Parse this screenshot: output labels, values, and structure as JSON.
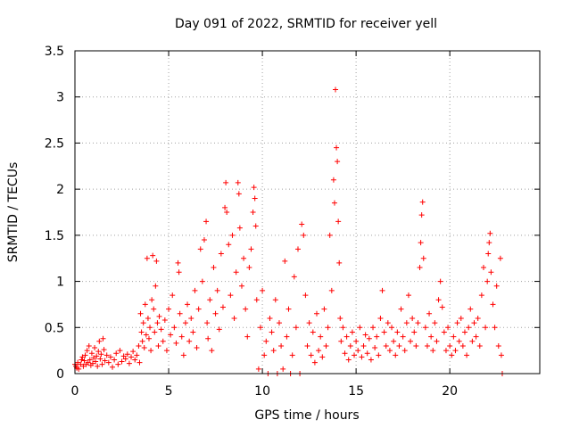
{
  "chart_data": {
    "type": "scatter",
    "title": "Day 091 of 2022, SRMTID for receiver yell",
    "xlabel": "GPS time / hours",
    "ylabel": "SRMTID / TECUs",
    "xlim": [
      0,
      24.8
    ],
    "ylim": [
      0,
      3.5
    ],
    "x_ticks": [
      0,
      5,
      10,
      15,
      20
    ],
    "x_tick_labels": [
      "0",
      "5",
      "10",
      "15",
      "20"
    ],
    "y_ticks": [
      0,
      0.5,
      1,
      1.5,
      2,
      2.5,
      3,
      3.5
    ],
    "y_tick_labels": [
      "0",
      "0.5",
      "1",
      "1.5",
      "2",
      "2.5",
      "3",
      "3.5"
    ],
    "grid": true,
    "marker": "+",
    "series_color": "#ff0000",
    "series": [
      {
        "name": "SRMTID",
        "points": [
          [
            0.0,
            0.1
          ],
          [
            0.05,
            0.08
          ],
          [
            0.1,
            0.06
          ],
          [
            0.15,
            0.12
          ],
          [
            0.2,
            0.05
          ],
          [
            0.3,
            0.1
          ],
          [
            0.35,
            0.15
          ],
          [
            0.4,
            0.18
          ],
          [
            0.45,
            0.08
          ],
          [
            0.5,
            0.14
          ],
          [
            0.55,
            0.2
          ],
          [
            0.6,
            0.1
          ],
          [
            0.65,
            0.25
          ],
          [
            0.7,
            0.12
          ],
          [
            0.75,
            0.3
          ],
          [
            0.8,
            0.15
          ],
          [
            0.85,
            0.09
          ],
          [
            0.9,
            0.22
          ],
          [
            0.95,
            0.11
          ],
          [
            1.0,
            0.17
          ],
          [
            1.05,
            0.28
          ],
          [
            1.1,
            0.13
          ],
          [
            1.15,
            0.19
          ],
          [
            1.2,
            0.08
          ],
          [
            1.25,
            0.24
          ],
          [
            1.3,
            0.35
          ],
          [
            1.35,
            0.16
          ],
          [
            1.4,
            0.21
          ],
          [
            1.45,
            0.1
          ],
          [
            1.5,
            0.38
          ],
          [
            1.55,
            0.26
          ],
          [
            1.6,
            0.14
          ],
          [
            1.7,
            0.2
          ],
          [
            1.8,
            0.12
          ],
          [
            1.9,
            0.18
          ],
          [
            2.0,
            0.07
          ],
          [
            2.1,
            0.15
          ],
          [
            2.2,
            0.22
          ],
          [
            2.3,
            0.1
          ],
          [
            2.4,
            0.25
          ],
          [
            2.5,
            0.13
          ],
          [
            2.6,
            0.19
          ],
          [
            2.7,
            0.16
          ],
          [
            2.8,
            0.21
          ],
          [
            2.9,
            0.11
          ],
          [
            3.0,
            0.18
          ],
          [
            3.1,
            0.24
          ],
          [
            3.2,
            0.15
          ],
          [
            3.3,
            0.2
          ],
          [
            3.4,
            0.3
          ],
          [
            3.45,
            0.12
          ],
          [
            3.5,
            0.65
          ],
          [
            3.55,
            0.45
          ],
          [
            3.6,
            0.35
          ],
          [
            3.65,
            0.55
          ],
          [
            3.7,
            0.28
          ],
          [
            3.75,
            0.75
          ],
          [
            3.8,
            0.42
          ],
          [
            3.85,
            1.25
          ],
          [
            3.9,
            0.6
          ],
          [
            3.95,
            0.38
          ],
          [
            4.0,
            0.5
          ],
          [
            4.05,
            0.25
          ],
          [
            4.1,
            0.8
          ],
          [
            4.15,
            1.28
          ],
          [
            4.2,
            0.7
          ],
          [
            4.25,
            0.45
          ],
          [
            4.3,
            0.95
          ],
          [
            4.35,
            1.22
          ],
          [
            4.4,
            0.55
          ],
          [
            4.45,
            0.3
          ],
          [
            4.5,
            0.62
          ],
          [
            4.6,
            0.48
          ],
          [
            4.7,
            0.35
          ],
          [
            4.8,
            0.58
          ],
          [
            4.9,
            0.25
          ],
          [
            5.0,
            0.7
          ],
          [
            5.1,
            0.42
          ],
          [
            5.2,
            0.85
          ],
          [
            5.3,
            0.5
          ],
          [
            5.4,
            0.33
          ],
          [
            5.5,
            1.2
          ],
          [
            5.55,
            1.1
          ],
          [
            5.6,
            0.65
          ],
          [
            5.7,
            0.4
          ],
          [
            5.8,
            0.2
          ],
          [
            5.9,
            0.55
          ],
          [
            6.0,
            0.75
          ],
          [
            6.1,
            0.35
          ],
          [
            6.2,
            0.6
          ],
          [
            6.3,
            0.45
          ],
          [
            6.4,
            0.9
          ],
          [
            6.5,
            0.28
          ],
          [
            6.6,
            0.7
          ],
          [
            6.7,
            1.35
          ],
          [
            6.8,
            1.0
          ],
          [
            6.9,
            1.45
          ],
          [
            7.0,
            1.65
          ],
          [
            7.05,
            0.55
          ],
          [
            7.1,
            0.38
          ],
          [
            7.2,
            0.8
          ],
          [
            7.3,
            0.25
          ],
          [
            7.4,
            1.15
          ],
          [
            7.5,
            0.65
          ],
          [
            7.6,
            0.9
          ],
          [
            7.7,
            0.48
          ],
          [
            7.8,
            1.3
          ],
          [
            7.9,
            0.72
          ],
          [
            8.0,
            1.8
          ],
          [
            8.05,
            2.07
          ],
          [
            8.1,
            1.75
          ],
          [
            8.2,
            1.4
          ],
          [
            8.3,
            0.85
          ],
          [
            8.4,
            1.5
          ],
          [
            8.5,
            0.6
          ],
          [
            8.6,
            1.1
          ],
          [
            8.7,
            2.07
          ],
          [
            8.75,
            1.95
          ],
          [
            8.8,
            1.58
          ],
          [
            8.9,
            0.95
          ],
          [
            9.0,
            1.25
          ],
          [
            9.1,
            0.7
          ],
          [
            9.2,
            0.4
          ],
          [
            9.3,
            1.15
          ],
          [
            9.4,
            1.35
          ],
          [
            9.5,
            1.75
          ],
          [
            9.55,
            2.02
          ],
          [
            9.6,
            1.9
          ],
          [
            9.65,
            1.6
          ],
          [
            9.7,
            0.8
          ],
          [
            9.8,
            0.05
          ],
          [
            9.9,
            0.5
          ],
          [
            10.0,
            0.9
          ],
          [
            10.1,
            0.2
          ],
          [
            10.2,
            0.35
          ],
          [
            10.3,
            0.0
          ],
          [
            10.4,
            0.6
          ],
          [
            10.5,
            0.45
          ],
          [
            10.6,
            0.25
          ],
          [
            10.7,
            0.8
          ],
          [
            10.8,
            0.0
          ],
          [
            10.9,
            0.55
          ],
          [
            11.0,
            0.3
          ],
          [
            11.1,
            0.05
          ],
          [
            11.2,
            1.22
          ],
          [
            11.3,
            0.4
          ],
          [
            11.4,
            0.7
          ],
          [
            11.5,
            0.0
          ],
          [
            11.6,
            0.2
          ],
          [
            11.7,
            1.05
          ],
          [
            11.8,
            0.5
          ],
          [
            11.9,
            1.35
          ],
          [
            12.0,
            0.0
          ],
          [
            12.1,
            1.62
          ],
          [
            12.2,
            1.5
          ],
          [
            12.3,
            0.85
          ],
          [
            12.4,
            0.3
          ],
          [
            12.5,
            0.55
          ],
          [
            12.6,
            0.2
          ],
          [
            12.7,
            0.45
          ],
          [
            12.8,
            0.12
          ],
          [
            12.9,
            0.65
          ],
          [
            13.0,
            0.25
          ],
          [
            13.1,
            0.4
          ],
          [
            13.2,
            0.18
          ],
          [
            13.3,
            0.7
          ],
          [
            13.4,
            0.3
          ],
          [
            13.5,
            0.5
          ],
          [
            13.6,
            1.5
          ],
          [
            13.7,
            0.9
          ],
          [
            13.8,
            2.1
          ],
          [
            13.85,
            1.85
          ],
          [
            13.9,
            3.08
          ],
          [
            13.95,
            2.45
          ],
          [
            14.0,
            2.3
          ],
          [
            14.05,
            1.65
          ],
          [
            14.1,
            1.2
          ],
          [
            14.15,
            0.6
          ],
          [
            14.2,
            0.35
          ],
          [
            14.3,
            0.5
          ],
          [
            14.4,
            0.22
          ],
          [
            14.5,
            0.4
          ],
          [
            14.6,
            0.15
          ],
          [
            14.7,
            0.3
          ],
          [
            14.8,
            0.45
          ],
          [
            14.9,
            0.2
          ],
          [
            15.0,
            0.35
          ],
          [
            15.1,
            0.25
          ],
          [
            15.2,
            0.5
          ],
          [
            15.3,
            0.18
          ],
          [
            15.4,
            0.3
          ],
          [
            15.5,
            0.42
          ],
          [
            15.6,
            0.22
          ],
          [
            15.7,
            0.38
          ],
          [
            15.8,
            0.15
          ],
          [
            15.9,
            0.5
          ],
          [
            16.0,
            0.28
          ],
          [
            16.1,
            0.4
          ],
          [
            16.2,
            0.2
          ],
          [
            16.3,
            0.6
          ],
          [
            16.4,
            0.9
          ],
          [
            16.5,
            0.45
          ],
          [
            16.6,
            0.3
          ],
          [
            16.7,
            0.55
          ],
          [
            16.8,
            0.25
          ],
          [
            16.9,
            0.5
          ],
          [
            17.0,
            0.35
          ],
          [
            17.1,
            0.2
          ],
          [
            17.2,
            0.45
          ],
          [
            17.3,
            0.3
          ],
          [
            17.4,
            0.7
          ],
          [
            17.5,
            0.4
          ],
          [
            17.6,
            0.25
          ],
          [
            17.7,
            0.55
          ],
          [
            17.8,
            0.85
          ],
          [
            17.9,
            0.35
          ],
          [
            18.0,
            0.6
          ],
          [
            18.1,
            0.45
          ],
          [
            18.2,
            0.3
          ],
          [
            18.3,
            0.55
          ],
          [
            18.4,
            1.15
          ],
          [
            18.45,
            1.42
          ],
          [
            18.5,
            1.72
          ],
          [
            18.55,
            1.86
          ],
          [
            18.6,
            1.25
          ],
          [
            18.7,
            0.5
          ],
          [
            18.8,
            0.3
          ],
          [
            18.9,
            0.65
          ],
          [
            19.0,
            0.4
          ],
          [
            19.1,
            0.25
          ],
          [
            19.2,
            0.55
          ],
          [
            19.3,
            0.35
          ],
          [
            19.4,
            0.8
          ],
          [
            19.5,
            1.0
          ],
          [
            19.6,
            0.72
          ],
          [
            19.7,
            0.45
          ],
          [
            19.8,
            0.25
          ],
          [
            19.9,
            0.5
          ],
          [
            20.0,
            0.3
          ],
          [
            20.1,
            0.2
          ],
          [
            20.2,
            0.4
          ],
          [
            20.3,
            0.25
          ],
          [
            20.4,
            0.55
          ],
          [
            20.5,
            0.35
          ],
          [
            20.6,
            0.6
          ],
          [
            20.7,
            0.3
          ],
          [
            20.8,
            0.45
          ],
          [
            20.9,
            0.2
          ],
          [
            21.0,
            0.5
          ],
          [
            21.1,
            0.7
          ],
          [
            21.2,
            0.35
          ],
          [
            21.3,
            0.55
          ],
          [
            21.4,
            0.4
          ],
          [
            21.5,
            0.6
          ],
          [
            21.6,
            0.3
          ],
          [
            21.7,
            0.85
          ],
          [
            21.8,
            1.15
          ],
          [
            21.9,
            0.5
          ],
          [
            22.0,
            1.0
          ],
          [
            22.05,
            1.3
          ],
          [
            22.1,
            1.42
          ],
          [
            22.15,
            1.52
          ],
          [
            22.2,
            1.1
          ],
          [
            22.3,
            0.75
          ],
          [
            22.4,
            0.5
          ],
          [
            22.5,
            0.95
          ],
          [
            22.6,
            0.3
          ],
          [
            22.7,
            1.25
          ],
          [
            22.75,
            0.2
          ],
          [
            22.8,
            0.0
          ]
        ]
      }
    ]
  }
}
